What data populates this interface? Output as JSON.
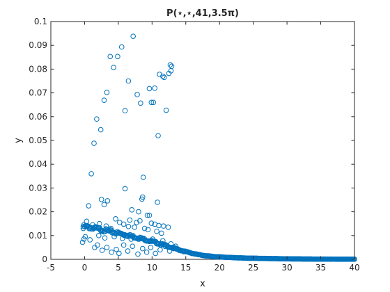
{
  "chart_data": {
    "type": "scatter",
    "title": "P(⋆,⋆,41,3.5π)",
    "xlabel": "x",
    "ylabel": "y",
    "xlim": [
      -5,
      40
    ],
    "ylim": [
      0,
      0.1
    ],
    "grid": false,
    "legend": "none",
    "marker": "circle-open",
    "colors": {
      "marker": "#0072BD",
      "axis": "#262626",
      "background": "#ffffff"
    },
    "xticks": [
      -5,
      0,
      5,
      10,
      15,
      20,
      25,
      30,
      35,
      40
    ],
    "xtick_labels": [
      "-5",
      "0",
      "5",
      "10",
      "15",
      "20",
      "25",
      "30",
      "35",
      "40"
    ],
    "yticks": [
      0,
      0.01,
      0.02,
      0.03,
      0.04,
      0.05,
      0.06,
      0.07,
      0.08,
      0.09,
      0.1
    ],
    "ytick_labels": [
      "0",
      "0.01",
      "0.02",
      "0.03",
      "0.04",
      "0.05",
      "0.06",
      "0.07",
      "0.08",
      "0.09",
      "0.1"
    ],
    "points": [
      [
        7.2,
        0.0938
      ],
      [
        5.5,
        0.0893
      ],
      [
        3.8,
        0.0853
      ],
      [
        4.9,
        0.0853
      ],
      [
        4.3,
        0.0807
      ],
      [
        12.7,
        0.0818
      ],
      [
        12.9,
        0.0812
      ],
      [
        12.8,
        0.0793
      ],
      [
        12.5,
        0.0782
      ],
      [
        11.1,
        0.0778
      ],
      [
        11.6,
        0.077
      ],
      [
        11.8,
        0.0765
      ],
      [
        6.5,
        0.075
      ],
      [
        10.4,
        0.072
      ],
      [
        9.6,
        0.0718
      ],
      [
        7.8,
        0.0693
      ],
      [
        3.3,
        0.0702
      ],
      [
        2.9,
        0.0669
      ],
      [
        8.3,
        0.0657
      ],
      [
        9.9,
        0.066
      ],
      [
        10.2,
        0.066
      ],
      [
        6.0,
        0.0625
      ],
      [
        12.1,
        0.0627
      ],
      [
        1.8,
        0.059
      ],
      [
        2.4,
        0.0545
      ],
      [
        10.9,
        0.052
      ],
      [
        1.4,
        0.0488
      ],
      [
        1.0,
        0.036
      ],
      [
        8.7,
        0.0345
      ],
      [
        6.0,
        0.0297
      ],
      [
        8.6,
        0.0262
      ],
      [
        8.5,
        0.0253
      ],
      [
        2.5,
        0.0252
      ],
      [
        3.4,
        0.0246
      ],
      [
        2.9,
        0.023
      ],
      [
        0.6,
        0.0225
      ],
      [
        10.8,
        0.024
      ],
      [
        7.0,
        0.0208
      ],
      [
        9.3,
        0.0185
      ],
      [
        9.6,
        0.0185
      ],
      [
        8.0,
        0.02
      ],
      [
        4.6,
        0.017
      ],
      [
        5.2,
        0.0155
      ],
      [
        6.7,
        0.0165
      ],
      [
        7.7,
        0.0155
      ],
      [
        8.2,
        0.0162
      ],
      [
        9.9,
        0.0152
      ],
      [
        10.4,
        0.0148
      ],
      [
        11.0,
        0.0142
      ],
      [
        11.7,
        0.014
      ],
      [
        12.4,
        0.0135
      ],
      [
        0.3,
        0.016
      ],
      [
        1.2,
        0.0145
      ],
      [
        2.2,
        0.015
      ],
      [
        3.2,
        0.014
      ],
      [
        3.9,
        0.013
      ],
      [
        5.8,
        0.0148
      ],
      [
        6.5,
        0.0138
      ],
      [
        7.4,
        0.0135
      ],
      [
        8.9,
        0.013
      ],
      [
        9.4,
        0.0125
      ],
      [
        10.7,
        0.0118
      ],
      [
        11.4,
        0.011
      ],
      [
        -0.2,
        0.013
      ],
      [
        -0.1,
        0.0085
      ],
      [
        -0.3,
        0.0072
      ],
      [
        0.1,
        0.0095
      ],
      [
        0.8,
        0.0082
      ],
      [
        1.5,
        0.005
      ],
      [
        1.9,
        0.006
      ],
      [
        2.6,
        0.0038
      ],
      [
        3.3,
        0.005
      ],
      [
        4.0,
        0.003
      ],
      [
        4.7,
        0.0042
      ],
      [
        5.1,
        0.0025
      ],
      [
        5.8,
        0.006
      ],
      [
        6.4,
        0.0035
      ],
      [
        7.1,
        0.0055
      ],
      [
        7.9,
        0.0022
      ],
      [
        8.6,
        0.0045
      ],
      [
        9.2,
        0.003
      ],
      [
        9.8,
        0.005
      ],
      [
        10.5,
        0.0025
      ],
      [
        11.2,
        0.004
      ],
      [
        11.9,
        0.0055
      ],
      [
        12.6,
        0.0035
      ],
      [
        13.2,
        0.0045
      ],
      [
        2.1,
        0.01
      ],
      [
        3.0,
        0.009
      ],
      [
        4.4,
        0.0095
      ],
      [
        5.6,
        0.0088
      ],
      [
        6.9,
        0.0085
      ],
      [
        8.2,
        0.0092
      ],
      [
        9.0,
        0.008
      ],
      [
        10.1,
        0.0085
      ],
      [
        11.6,
        0.0078
      ],
      [
        12.8,
        0.0065
      ],
      [
        13.5,
        0.0055
      ]
    ],
    "curve_x": [
      -0.2,
      1,
      2,
      3,
      4,
      5,
      6,
      7,
      8,
      9,
      10,
      11,
      12,
      13,
      14,
      15,
      16,
      17,
      18,
      19,
      20,
      22,
      24,
      26,
      28,
      30,
      32,
      34,
      36,
      38,
      40
    ],
    "curve_y": [
      0.0138,
      0.0133,
      0.0128,
      0.0122,
      0.0116,
      0.011,
      0.0104,
      0.0097,
      0.009,
      0.0083,
      0.0075,
      0.0067,
      0.0058,
      0.0049,
      0.004,
      0.0032,
      0.0025,
      0.0019,
      0.0015,
      0.0012,
      0.001,
      0.0007,
      0.0005,
      0.0004,
      0.0003,
      0.0002,
      0.00015,
      0.0001,
      8e-05,
      6e-05,
      5e-05
    ]
  }
}
